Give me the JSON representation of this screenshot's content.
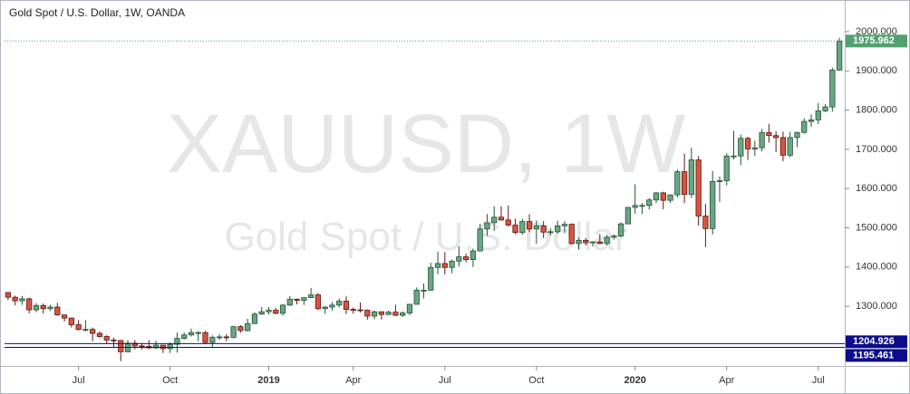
{
  "chart_data": {
    "type": "candlestick",
    "title": "Gold Spot / U.S. Dollar, 1W, OANDA",
    "watermark": "XAUUSD, 1W",
    "watermark_subtitle": "Gold Spot / U.S. Dollar",
    "up_color": "#6ba583",
    "down_color": "#d75442",
    "up_border": "#225437",
    "down_border": "#5b1a13",
    "last_price_color": "#53a071",
    "level_color": "#0c0c8a",
    "ylim": [
      1148,
      2069
    ],
    "yticks": [
      {
        "value": 1300,
        "label": "1300.000"
      },
      {
        "value": 1400,
        "label": "1400.000"
      },
      {
        "value": 1500,
        "label": "1500.000"
      },
      {
        "value": 1600,
        "label": "1600.000"
      },
      {
        "value": 1700,
        "label": "1700.000"
      },
      {
        "value": 1800,
        "label": "1800.000"
      },
      {
        "value": 1900,
        "label": "1900.000"
      },
      {
        "value": 2000,
        "label": "2000.000"
      }
    ],
    "xlim": [
      -0.5,
      118.5
    ],
    "xticks": [
      {
        "value": 10,
        "label": "Jul"
      },
      {
        "value": 23,
        "label": "Oct"
      },
      {
        "value": 37,
        "label": "2019"
      },
      {
        "value": 49,
        "label": "Apr"
      },
      {
        "value": 62,
        "label": "Jul"
      },
      {
        "value": 75,
        "label": "Oct"
      },
      {
        "value": 89,
        "label": "2020"
      },
      {
        "value": 102,
        "label": "Apr"
      },
      {
        "value": 115,
        "label": "Jul"
      }
    ],
    "levels": [
      1204.926,
      1195.461
    ],
    "open": [
      1335,
      1323,
      1314,
      1319,
      1291,
      1302,
      1294,
      1298,
      1278,
      1270,
      1253,
      1241,
      1241,
      1231,
      1223,
      1214,
      1213,
      1184,
      1206,
      1199,
      1198,
      1194,
      1201,
      1192,
      1203,
      1218,
      1227,
      1233,
      1233,
      1208,
      1221,
      1222,
      1221,
      1248,
      1238,
      1256,
      1280,
      1286,
      1290,
      1282,
      1303,
      1318,
      1315,
      1322,
      1329,
      1294,
      1298,
      1303,
      1313,
      1292,
      1291,
      1290,
      1275,
      1286,
      1279,
      1285,
      1277,
      1283,
      1305,
      1341,
      1341,
      1399,
      1409,
      1399,
      1415,
      1426,
      1419,
      1441,
      1497,
      1513,
      1527,
      1520,
      1507,
      1488,
      1516,
      1497,
      1505,
      1489,
      1490,
      1505,
      1509,
      1460,
      1468,
      1462,
      1464,
      1460,
      1476,
      1479,
      1510,
      1552,
      1557,
      1557,
      1571,
      1589,
      1570,
      1584,
      1643,
      1585,
      1673,
      1530,
      1498,
      1618,
      1620,
      1683,
      1683,
      1728,
      1701,
      1704,
      1743,
      1735,
      1730,
      1685,
      1730,
      1743,
      1771,
      1775,
      1798,
      1808,
      1902
    ],
    "high": [
      1336,
      1327,
      1326,
      1322,
      1308,
      1307,
      1304,
      1309,
      1278,
      1271,
      1265,
      1265,
      1246,
      1236,
      1226,
      1220,
      1214,
      1214,
      1214,
      1207,
      1214,
      1212,
      1201,
      1208,
      1233,
      1233,
      1243,
      1237,
      1237,
      1226,
      1229,
      1229,
      1250,
      1252,
      1268,
      1285,
      1298,
      1298,
      1296,
      1305,
      1326,
      1320,
      1322,
      1347,
      1334,
      1300,
      1311,
      1320,
      1325,
      1297,
      1310,
      1292,
      1289,
      1287,
      1289,
      1304,
      1287,
      1306,
      1348,
      1358,
      1411,
      1439,
      1438,
      1419,
      1453,
      1434,
      1447,
      1510,
      1535,
      1555,
      1555,
      1557,
      1523,
      1523,
      1535,
      1519,
      1517,
      1499,
      1518,
      1517,
      1511,
      1475,
      1474,
      1466,
      1484,
      1482,
      1483,
      1514,
      1553,
      1611,
      1563,
      1576,
      1591,
      1592,
      1584,
      1649,
      1689,
      1704,
      1683,
      1561,
      1645,
      1631,
      1690,
      1747,
      1738,
      1732,
      1722,
      1752,
      1765,
      1746,
      1745,
      1745,
      1745,
      1779,
      1789,
      1818,
      1815,
      1908,
      1984
    ],
    "low": [
      1316,
      1302,
      1304,
      1282,
      1285,
      1281,
      1288,
      1276,
      1261,
      1246,
      1238,
      1236,
      1211,
      1220,
      1204,
      1195,
      1160,
      1183,
      1190,
      1190,
      1192,
      1191,
      1181,
      1181,
      1182,
      1215,
      1223,
      1211,
      1203,
      1196,
      1214,
      1211,
      1218,
      1233,
      1236,
      1255,
      1278,
      1279,
      1280,
      1276,
      1301,
      1305,
      1303,
      1321,
      1290,
      1281,
      1289,
      1297,
      1280,
      1281,
      1284,
      1266,
      1267,
      1266,
      1278,
      1275,
      1273,
      1277,
      1305,
      1320,
      1340,
      1382,
      1381,
      1384,
      1401,
      1412,
      1400,
      1441,
      1480,
      1492,
      1518,
      1503,
      1484,
      1483,
      1489,
      1459,
      1474,
      1480,
      1485,
      1486,
      1457,
      1445,
      1455,
      1452,
      1458,
      1455,
      1470,
      1476,
      1510,
      1536,
      1535,
      1546,
      1563,
      1547,
      1563,
      1577,
      1563,
      1576,
      1505,
      1451,
      1483,
      1566,
      1608,
      1674,
      1659,
      1673,
      1683,
      1695,
      1717,
      1693,
      1670,
      1680,
      1705,
      1740,
      1757,
      1764,
      1795,
      1796,
      1900
    ],
    "close": [
      1323,
      1314,
      1319,
      1291,
      1302,
      1294,
      1298,
      1278,
      1270,
      1253,
      1241,
      1241,
      1231,
      1223,
      1214,
      1213,
      1184,
      1206,
      1199,
      1198,
      1194,
      1201,
      1192,
      1203,
      1218,
      1227,
      1233,
      1233,
      1208,
      1221,
      1222,
      1221,
      1248,
      1238,
      1256,
      1280,
      1286,
      1290,
      1282,
      1303,
      1318,
      1315,
      1322,
      1329,
      1294,
      1298,
      1303,
      1313,
      1292,
      1291,
      1290,
      1275,
      1286,
      1279,
      1285,
      1277,
      1283,
      1305,
      1341,
      1341,
      1399,
      1409,
      1399,
      1415,
      1426,
      1419,
      1441,
      1497,
      1513,
      1527,
      1520,
      1507,
      1488,
      1516,
      1497,
      1505,
      1489,
      1490,
      1505,
      1509,
      1460,
      1468,
      1462,
      1464,
      1460,
      1476,
      1479,
      1510,
      1552,
      1557,
      1557,
      1571,
      1589,
      1570,
      1584,
      1643,
      1585,
      1673,
      1530,
      1498,
      1618,
      1620,
      1683,
      1683,
      1728,
      1701,
      1704,
      1743,
      1735,
      1730,
      1685,
      1730,
      1743,
      1771,
      1775,
      1798,
      1808,
      1902,
      1975.962
    ]
  }
}
